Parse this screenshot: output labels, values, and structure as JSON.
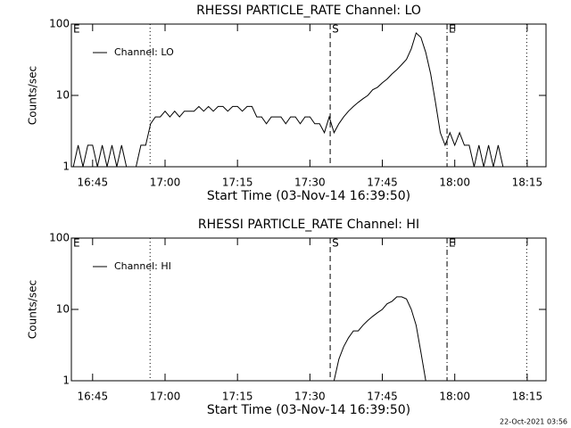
{
  "chart_data": [
    {
      "type": "line",
      "title": "RHESSI PARTICLE_RATE Channel: LO",
      "xlabel": "Start Time (03-Nov-14 16:39:50)",
      "ylabel": "Counts/sec",
      "log_y": true,
      "xlim": [
        40.6,
        138.9
      ],
      "ylim": [
        1,
        100
      ],
      "yticks": [
        1,
        10,
        100
      ],
      "xticks": [
        {
          "value": 45,
          "label": "16:45"
        },
        {
          "value": 60,
          "label": "17:00"
        },
        {
          "value": 75,
          "label": "17:15"
        },
        {
          "value": 90,
          "label": "17:30"
        },
        {
          "value": 105,
          "label": "17:45"
        },
        {
          "value": 120,
          "label": "18:00"
        },
        {
          "value": 135,
          "label": "18:15"
        }
      ],
      "markers": [
        {
          "x": 40.6,
          "label": "E"
        },
        {
          "x": 56.9,
          "style": "dotted"
        },
        {
          "x": 94.2,
          "style": "dashed",
          "label": "S"
        },
        {
          "x": 118.4,
          "style": "dash-dot",
          "label": "E"
        },
        {
          "x": 134.9,
          "style": "dotted"
        }
      ],
      "series": [
        {
          "name": "Channel: LO",
          "color": "#000000",
          "x": [
            41,
            42,
            43,
            44,
            45,
            46,
            47,
            48,
            49,
            50,
            51,
            52,
            53,
            54,
            55,
            56,
            57,
            58,
            59,
            60,
            61,
            62,
            63,
            64,
            65,
            66,
            67,
            68,
            69,
            70,
            71,
            72,
            73,
            74,
            75,
            76,
            77,
            78,
            79,
            80,
            81,
            82,
            83,
            84,
            85,
            86,
            87,
            88,
            89,
            90,
            91,
            92,
            93,
            94,
            95,
            96,
            97,
            98,
            99,
            100,
            101,
            102,
            103,
            104,
            105,
            106,
            107,
            108,
            109,
            110,
            111,
            112,
            113,
            114,
            115,
            116,
            117,
            118,
            119,
            120,
            121,
            122,
            123,
            124,
            125,
            126,
            127,
            128,
            129,
            130,
            131,
            132,
            133,
            134,
            135,
            136,
            137,
            138
          ],
          "values": [
            1,
            2,
            1,
            2,
            2,
            1,
            2,
            1,
            2,
            1,
            2,
            1,
            1,
            1,
            2,
            2,
            4,
            5,
            5,
            6,
            5,
            6,
            5,
            6,
            6,
            6,
            7,
            6,
            7,
            6,
            7,
            7,
            6,
            7,
            7,
            6,
            7,
            7,
            5,
            5,
            4,
            5,
            5,
            5,
            4,
            5,
            5,
            4,
            5,
            5,
            4,
            4,
            3,
            5,
            3,
            4,
            5,
            6,
            7,
            8,
            9,
            10,
            12,
            13,
            15,
            17,
            20,
            23,
            27,
            32,
            45,
            75,
            65,
            40,
            20,
            8,
            3,
            2,
            3,
            2,
            3,
            2,
            2,
            1,
            2,
            1,
            2,
            1,
            2,
            1,
            1,
            1,
            1,
            1,
            1,
            1,
            1,
            1
          ]
        }
      ]
    },
    {
      "type": "line",
      "title": "RHESSI PARTICLE_RATE Channel: HI",
      "xlabel": "Start Time (03-Nov-14 16:39:50)",
      "ylabel": "Counts/sec",
      "log_y": true,
      "xlim": [
        40.6,
        138.9
      ],
      "ylim": [
        1,
        100
      ],
      "yticks": [
        1,
        10,
        100
      ],
      "xticks": [
        {
          "value": 45,
          "label": "16:45"
        },
        {
          "value": 60,
          "label": "17:00"
        },
        {
          "value": 75,
          "label": "17:15"
        },
        {
          "value": 90,
          "label": "17:30"
        },
        {
          "value": 105,
          "label": "17:45"
        },
        {
          "value": 120,
          "label": "18:00"
        },
        {
          "value": 135,
          "label": "18:15"
        }
      ],
      "markers": [
        {
          "x": 40.6,
          "label": "E"
        },
        {
          "x": 56.9,
          "style": "dotted"
        },
        {
          "x": 94.2,
          "style": "dashed",
          "label": "S"
        },
        {
          "x": 118.4,
          "style": "dash-dot",
          "label": "E"
        },
        {
          "x": 134.9,
          "style": "dotted"
        }
      ],
      "series": [
        {
          "name": "Channel: HI",
          "color": "#000000",
          "x": [
            95,
            96,
            97,
            98,
            99,
            100,
            101,
            102,
            103,
            104,
            105,
            106,
            107,
            108,
            109,
            110,
            111,
            112,
            113,
            114
          ],
          "values": [
            1,
            2,
            3,
            4,
            5,
            5,
            6,
            7,
            8,
            9,
            10,
            12,
            13,
            15,
            15,
            14,
            10,
            6,
            2.5,
            1
          ]
        }
      ]
    }
  ],
  "footer": "22-Oct-2021 03:56"
}
